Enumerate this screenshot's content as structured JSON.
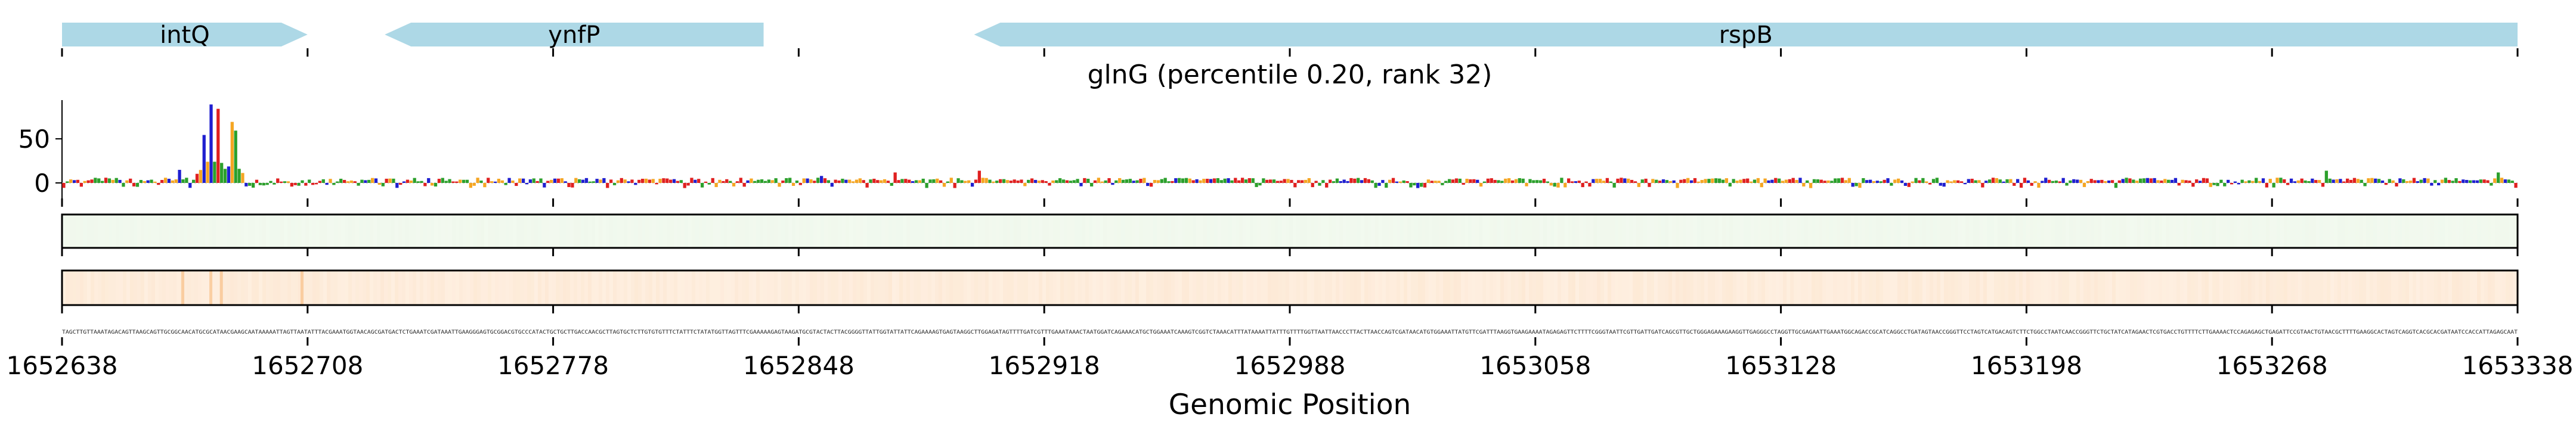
{
  "chart_data": {
    "type": "genome-track",
    "title": "glnG (percentile 0.20, rank 32)",
    "xlabel": "Genomic Position",
    "xlim": [
      1652638,
      1653338
    ],
    "x_ticks": [
      "1652638",
      "1652708",
      "1652778",
      "1652848",
      "1652918",
      "1652988",
      "1653058",
      "1653128",
      "1653198",
      "1653268",
      "1653338"
    ],
    "genes": [
      {
        "name": "intQ",
        "start": 1652638,
        "end": 1652708,
        "strand": "+"
      },
      {
        "name": "ynfP",
        "start": 1652730,
        "end": 1652838,
        "strand": "-"
      },
      {
        "name": "rspB",
        "start": 1652898,
        "end": 1653338,
        "strand": "-"
      }
    ],
    "logo_track": {
      "ylabel": "",
      "y_ticks": [
        "50",
        "0"
      ],
      "ylim": [
        -15,
        95
      ],
      "peaks": [
        {
          "position": 1652671,
          "value": 15
        },
        {
          "position": 1652678,
          "value": 55
        },
        {
          "position": 1652680,
          "value": 90
        },
        {
          "position": 1652682,
          "value": 85
        },
        {
          "position": 1652686,
          "value": 70
        },
        {
          "position": 1652687,
          "value": 60
        },
        {
          "position": 1652854,
          "value": 8
        },
        {
          "position": 1652875,
          "value": 12
        },
        {
          "position": 1652899,
          "value": 14
        },
        {
          "position": 1653283,
          "value": 14
        },
        {
          "position": 1653332,
          "value": 12
        }
      ]
    },
    "heatmap_tracks": [
      {
        "name": "green-track",
        "color": "#d9ecd2"
      },
      {
        "name": "orange-track",
        "color": "#f6a85a"
      }
    ],
    "nucleotide_colors": {
      "A": "#2ca02c",
      "C": "#1f1fd0",
      "G": "#f5a623",
      "T": "#e02020"
    },
    "gene_color": "#add8e6",
    "sequence": "TAGCTTGTTAAATAGACAGTTAAGCAGTTGCGGCAACATGCGCATAACGAAGCAATAAAAATTAGTTAATATTTACGAAATGGTAACAGCGATGACTCTGAAATCGATAAATTGAAGGGAGTGCGGACGTGCCCATACTGCTGCTTGACCAACGCTTAGTGCTCTTGTGTGTTTCTATTTCTATATGGTTAGTTTCGAAAAAGAGTAAGATGCGTACTACTTACGGGGTTATTGGTATTATTCAGAAAAGTGAGTAAGGCTTGGAGATAGTTTTGATCGTTTGAAATAAACTAATGGATCAGAAACATGCTGGAAATCAAAGTCGGTCTAAACATTTATAAAATTATTTGTTTTGGTTAATTAACCCTTACTTAACCAGTCGATAACATGTGGAAATTATGTTCGATTTAAGGTGAAGAAAATAGAGAGTTCTTTTCGGGTAATTCGTTGATTGATCAGCGTTGCTGGGAGAAAGAAGGTTGAGGGCCTAGGTTGCGAGAATTGAAATGGCAGACCGCATCAGGCCTGATAGTAACCGGGTTCCTAGTCATGACAGTCTTCTGGCCTAATCAACCGGGTTCTGCTATCATAGAACTCGTGACCTGTTTTCTTGAAAACTCCAGAGAGCTGAGATTCCGTAACTGTAACGCTTTTGAAGGCACTAGTCAGGTCACGCACGATAATCCACCATTAGAGCAAT"
  }
}
